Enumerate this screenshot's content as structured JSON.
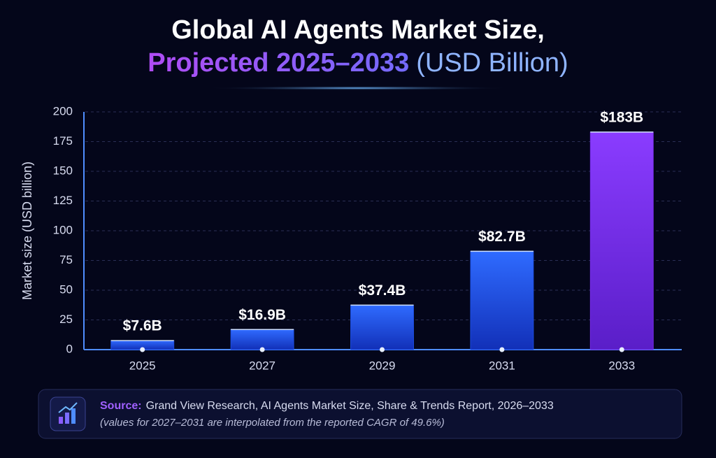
{
  "chart_data": {
    "type": "bar",
    "title": {
      "line1": "Global AI Agents Market Size,",
      "highlight": "Projected 2025–2033",
      "rest": "(USD Billion)"
    },
    "ylabel": "Market size (USD billion)",
    "categories": [
      "2025",
      "2027",
      "2029",
      "2031",
      "2033"
    ],
    "values": [
      7.6,
      16.9,
      37.4,
      82.7,
      183
    ],
    "value_labels": [
      "$7.6B",
      "$16.9B",
      "$37.4B",
      "$82.7B",
      "$183B"
    ],
    "colors": [
      "#1d4fe6",
      "#1d4fe6",
      "#1d4fe6",
      "#1d4fe6",
      "#7a2cf0"
    ],
    "ylim": [
      0,
      200
    ],
    "yticks": [
      0,
      25,
      50,
      75,
      100,
      125,
      150,
      175,
      200
    ],
    "grid": true,
    "source": {
      "label": "Source:",
      "text": "Grand View Research, AI Agents Market Size, Share & Trends Report, 2026–2033",
      "note": "(values for 2027–2031 are interpolated from the reported CAGR of 49.6%)"
    }
  }
}
